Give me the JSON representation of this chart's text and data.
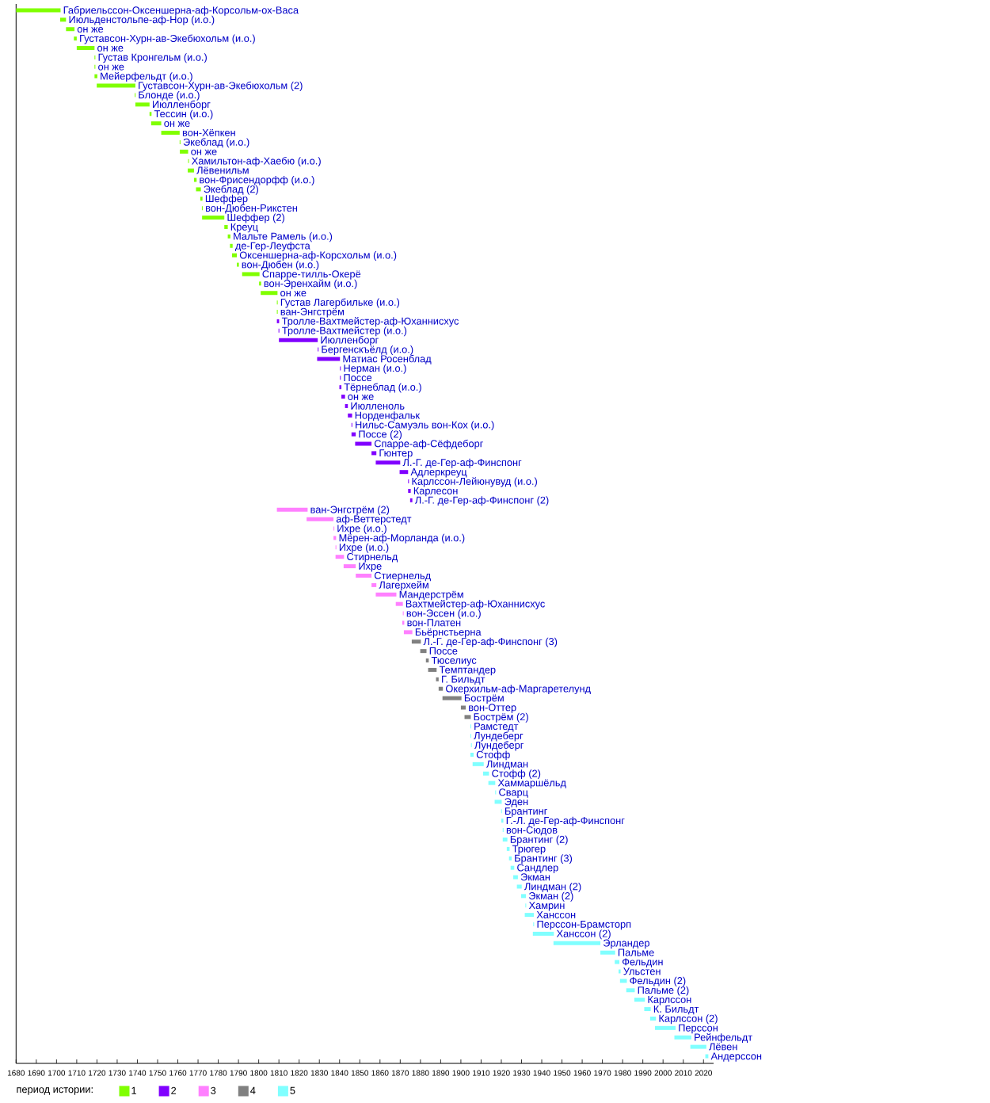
{
  "chart_data": {
    "type": "bar",
    "orientation": "horizontal",
    "categories": [
      "Габриельссон-Оксеншерна-аф-Корсольм-ох-Васа",
      "Июльденстольпе-аф-Нор (и.о.)",
      "он же",
      "Густавсон-Хурн-ав-Экебюхольм (и.о.)",
      "он же",
      "Густав Кронгельм (и.о.)",
      "он же",
      "Мейерфельдт (и.о.)",
      "Густавсон-Хурн-ав-Экебюхольм (2)",
      "Блонде (и.о.)",
      "Июлленборг",
      "Тессин (и.о.)",
      "он же",
      "вон-Хёпкен",
      "Экеблад (и.о.)",
      "он же",
      "Хамильтон-аф-Хаебю (и.о.)",
      "Лёвенильм",
      "вон-Фрисендорфф (и.о.)",
      "Экеблад (2)",
      "Шеффер",
      "вон-Дюбен-Рикстен",
      "Шеффер (2)",
      "Креуц",
      "Мальте Рамель (и.о.)",
      "де-Гер-Леуфста",
      "Оксеншерна-аф-Корсхольм (и.о.)",
      "вон-Дюбен (и.о.)",
      "Спарре-тилль-Окерё",
      "вон-Эренхайм (и.о.)",
      "он же",
      "Густав Лагербильке (и.о.)",
      "ван-Энгстрём",
      "Тролле-Вахтмейстер-аф-Юханнисхус",
      "Тролле-Вахтмейстер (и.о.)",
      "Июлленборг",
      "Бергенскъёлд (и.о.)",
      "Матиас Росенблад",
      "Нерман (и.о.)",
      "Поссе",
      "Тёрнеблад (и.о.)",
      "он же",
      "Июлленоль",
      "Норденфальк",
      "Нильс-Самуэль вон-Кох (и.о.)",
      "Поссе (2)",
      "Спарре-аф-Сёфдеборг",
      "Гюнтер",
      "Л.-Г. де-Гер-аф-Финспонг",
      "Адлеркреуц",
      "Карлссон-Лейюнувуд (и.о.)",
      "Карлесон",
      "Л.-Г. де-Гер-аф-Финспонг (2)",
      "ван-Энгстрём (2)",
      "аф-Веттерстедт",
      "Ихре (и.о.)",
      "Мёрен-аф-Морланда (и.о.)",
      "Ихре (и.о.)",
      "Стирнельд",
      "Ихре",
      "Стиернельд",
      "Лагерхейм",
      "Мандерстрём",
      "Вахтмейстер-аф-Юханнисхус",
      "вон-Эссен (и.о.)",
      "вон-Платен",
      "Бьёрнстьерна",
      "Л.-Г. де-Гер-аф-Финспонг (3)",
      "Поссе",
      "Тюселиус",
      "Темптандер",
      "Г. Бильдт",
      "Окерхильм-аф-Маргаретелунд",
      "Бострём",
      "вон-Оттер",
      "Бострём (2)",
      "Рамстедт",
      "Лундеберг",
      "Лундеберг",
      "Стофф",
      "Линдман",
      "Стофф (2)",
      "Хаммаршёльд",
      "Сварц",
      "Эден",
      "Брантинг",
      "Г.-Л. де-Гер-аф-Финспонг",
      "вон-Сюдов",
      "Брантинг (2)",
      "Трюгер",
      "Брантинг (3)",
      "Сандлер",
      "Экман",
      "Линдман (2)",
      "Экман (2)",
      "Хамрин",
      "Ханссон",
      "Перссон-Брамсторп",
      "Ханссон (2)",
      "Эрландер",
      "Пальме",
      "Фельдин",
      "Ульстен",
      "Фельдин (2)",
      "Пальме (2)",
      "Карлссон",
      "К. Бильдт",
      "Карлссон (2)",
      "Перссон",
      "Рейнфельдт",
      "Лёвен",
      "Андерссон"
    ],
    "series": [
      {
        "name": "1",
        "color": "#80ff00",
        "base": [
          1680,
          1701.8,
          1704.7,
          1708.6,
          1710,
          1718.8,
          1718.8,
          1718.8,
          1719.9,
          1738.7,
          1739,
          1746,
          1746.8,
          1751.8,
          1760.9,
          1761,
          1765.1,
          1764.9,
          1768,
          1769,
          1771.1,
          1771.9,
          1772,
          1783,
          1784.7,
          1785.8,
          1786.8,
          1789.2,
          1791.8,
          1800.2,
          1801,
          1809,
          1809,
          null,
          null,
          null,
          null,
          null,
          null,
          null,
          null,
          null,
          null,
          null,
          null,
          null,
          null,
          null,
          null,
          null,
          null,
          null,
          null,
          null,
          null,
          null,
          null,
          null,
          null,
          null,
          null,
          null,
          null,
          null,
          null,
          null,
          null,
          null,
          null,
          null,
          null,
          null,
          null,
          null,
          null,
          null,
          null,
          null,
          null,
          null,
          null,
          null,
          null,
          null,
          null,
          null,
          null,
          null,
          null,
          null,
          null,
          null,
          null,
          null,
          null,
          null,
          null,
          null,
          null,
          null,
          null,
          null,
          null,
          null,
          null,
          null,
          null,
          null,
          null,
          null,
          null,
          null
        ],
        "values": [
          22,
          2.9,
          4.2,
          1.4,
          8.8,
          0.4,
          0.4,
          1.4,
          19.1,
          0.4,
          7,
          1,
          5,
          9.1,
          0.4,
          4.1,
          0.4,
          3.1,
          1.3,
          2.4,
          1.1,
          0.4,
          11,
          1.7,
          1.3,
          1.3,
          2.4,
          1,
          8.6,
          1,
          8.3,
          0.4,
          0.4,
          null,
          null,
          null,
          null,
          null,
          null,
          null,
          null,
          null,
          null,
          null,
          null,
          null,
          null,
          null,
          null,
          null,
          null,
          null,
          null,
          null,
          null,
          null,
          null,
          null,
          null,
          null,
          null,
          null,
          null,
          null,
          null,
          null,
          null,
          null,
          null,
          null,
          null,
          null,
          null,
          null,
          null,
          null,
          null,
          null,
          null,
          null,
          null,
          null,
          null,
          null,
          null,
          null,
          null,
          null,
          null,
          null,
          null,
          null,
          null,
          null,
          null,
          null,
          null,
          null,
          null,
          null,
          null,
          null,
          null,
          null,
          null,
          null,
          null,
          null,
          null,
          null,
          null,
          null
        ]
      },
      {
        "name": "2",
        "color": "#8000ff",
        "base": [
          null,
          null,
          null,
          null,
          null,
          null,
          null,
          null,
          null,
          null,
          null,
          null,
          null,
          null,
          null,
          null,
          null,
          null,
          null,
          null,
          null,
          null,
          null,
          null,
          null,
          null,
          null,
          null,
          null,
          null,
          null,
          null,
          null,
          1809,
          1809.8,
          1810,
          1829.2,
          1828.9,
          1840.2,
          1840.2,
          1839.9,
          1840.9,
          1842.7,
          1844.1,
          1845.9,
          1845.9,
          1847.7,
          1855.8,
          1857.9,
          1869.7,
          1873.9,
          1873.9,
          1874.9,
          null,
          null,
          null,
          null,
          null,
          null,
          null,
          null,
          null,
          null,
          null,
          null,
          null,
          null,
          null,
          null,
          null,
          null,
          null,
          null,
          null,
          null,
          null,
          null,
          null,
          null,
          null,
          null,
          null,
          null,
          null,
          null,
          null,
          null,
          null,
          null,
          null,
          null,
          null,
          null,
          null,
          null,
          null,
          null,
          null,
          null,
          null,
          null,
          null,
          null,
          null,
          null,
          null,
          null,
          null,
          null,
          null,
          null,
          null
        ],
        "values": [
          null,
          null,
          null,
          null,
          null,
          null,
          null,
          null,
          null,
          null,
          null,
          null,
          null,
          null,
          null,
          null,
          null,
          null,
          null,
          null,
          null,
          null,
          null,
          null,
          null,
          null,
          null,
          null,
          null,
          null,
          null,
          null,
          null,
          1.1,
          0.4,
          19.2,
          0.4,
          11.3,
          0.4,
          0.4,
          1,
          1.8,
          1.4,
          2.1,
          0.4,
          2.1,
          8.1,
          2.4,
          12.1,
          4.2,
          0.4,
          1.3,
          1.1,
          null,
          null,
          null,
          null,
          null,
          null,
          null,
          null,
          null,
          null,
          null,
          null,
          null,
          null,
          null,
          null,
          null,
          null,
          null,
          null,
          null,
          null,
          null,
          null,
          null,
          null,
          null,
          null,
          null,
          null,
          null,
          null,
          null,
          null,
          null,
          null,
          null,
          null,
          null,
          null,
          null,
          null,
          null,
          null,
          null,
          null,
          null,
          null,
          null,
          null,
          null,
          null,
          null,
          null,
          null,
          null,
          null,
          null,
          null
        ]
      },
      {
        "name": "3",
        "color": "#ff80ff",
        "base": [
          null,
          null,
          null,
          null,
          null,
          null,
          null,
          null,
          null,
          null,
          null,
          null,
          null,
          null,
          null,
          null,
          null,
          null,
          null,
          null,
          null,
          null,
          null,
          null,
          null,
          null,
          null,
          null,
          null,
          null,
          null,
          null,
          null,
          null,
          null,
          null,
          null,
          null,
          null,
          null,
          null,
          null,
          null,
          null,
          null,
          null,
          null,
          null,
          null,
          null,
          null,
          null,
          null,
          1809,
          1823.7,
          1837,
          1837,
          1838,
          1838,
          1842,
          1848,
          1855.8,
          1857.9,
          1867.8,
          1871.3,
          1871,
          1871.8,
          null,
          null,
          null,
          null,
          null,
          null,
          null,
          null,
          null,
          null,
          null,
          null,
          null,
          null,
          null,
          null,
          null,
          null,
          null,
          null,
          null,
          null,
          null,
          null,
          null,
          null,
          null,
          null,
          null,
          null,
          null,
          null,
          null,
          null,
          null,
          null,
          null,
          null,
          null,
          null,
          null,
          null,
          null,
          null,
          null
        ],
        "values": [
          null,
          null,
          null,
          null,
          null,
          null,
          null,
          null,
          null,
          null,
          null,
          null,
          null,
          null,
          null,
          null,
          null,
          null,
          null,
          null,
          null,
          null,
          null,
          null,
          null,
          null,
          null,
          null,
          null,
          null,
          null,
          null,
          null,
          null,
          null,
          null,
          null,
          null,
          null,
          null,
          null,
          null,
          null,
          null,
          null,
          null,
          null,
          null,
          null,
          null,
          null,
          null,
          null,
          15.2,
          13.3,
          0.4,
          1.3,
          0.4,
          4.2,
          6,
          7.8,
          2.4,
          10.2,
          3.5,
          0.4,
          1,
          4.2,
          null,
          null,
          null,
          null,
          null,
          null,
          null,
          null,
          null,
          null,
          null,
          null,
          null,
          null,
          null,
          null,
          null,
          null,
          null,
          null,
          null,
          null,
          null,
          null,
          null,
          null,
          null,
          null,
          null,
          null,
          null,
          null,
          null,
          null,
          null,
          null,
          null,
          null,
          null,
          null,
          null,
          null,
          null,
          null,
          null
        ]
      },
      {
        "name": "4",
        "color": "#808080",
        "base": [
          null,
          null,
          null,
          null,
          null,
          null,
          null,
          null,
          null,
          null,
          null,
          null,
          null,
          null,
          null,
          null,
          null,
          null,
          null,
          null,
          null,
          null,
          null,
          null,
          null,
          null,
          null,
          null,
          null,
          null,
          null,
          null,
          null,
          null,
          null,
          null,
          null,
          null,
          null,
          null,
          null,
          null,
          null,
          null,
          null,
          null,
          null,
          null,
          null,
          null,
          null,
          null,
          null,
          null,
          null,
          null,
          null,
          null,
          null,
          null,
          null,
          null,
          null,
          null,
          null,
          null,
          null,
          1875.7,
          1879.9,
          1882.7,
          1883.8,
          1887.7,
          1889,
          1890.9,
          1900,
          1901.8,
          null,
          null,
          null,
          null,
          null,
          null,
          null,
          null,
          null,
          null,
          null,
          null,
          null,
          null,
          null,
          null,
          null,
          null,
          null,
          null,
          null,
          null,
          null,
          null,
          null,
          null,
          null,
          null,
          null,
          null,
          null,
          null,
          null,
          null,
          null,
          null
        ],
        "values": [
          null,
          null,
          null,
          null,
          null,
          null,
          null,
          null,
          null,
          null,
          null,
          null,
          null,
          null,
          null,
          null,
          null,
          null,
          null,
          null,
          null,
          null,
          null,
          null,
          null,
          null,
          null,
          null,
          null,
          null,
          null,
          null,
          null,
          null,
          null,
          null,
          null,
          null,
          null,
          null,
          null,
          null,
          null,
          null,
          null,
          null,
          null,
          null,
          null,
          null,
          null,
          null,
          null,
          null,
          null,
          null,
          null,
          null,
          null,
          null,
          null,
          null,
          null,
          null,
          null,
          null,
          null,
          4.5,
          3.1,
          1.4,
          4.2,
          1.3,
          2.1,
          9.4,
          2.4,
          3.1,
          null,
          null,
          null,
          null,
          null,
          null,
          null,
          null,
          null,
          null,
          null,
          null,
          null,
          null,
          null,
          null,
          null,
          null,
          null,
          null,
          null,
          null,
          null,
          null,
          null,
          null,
          null,
          null,
          null,
          null,
          null,
          null,
          null,
          null,
          null,
          null
        ]
      },
      {
        "name": "5",
        "color": "#80ffff",
        "base": [
          null,
          null,
          null,
          null,
          null,
          null,
          null,
          null,
          null,
          null,
          null,
          null,
          null,
          null,
          null,
          null,
          null,
          null,
          null,
          null,
          null,
          null,
          null,
          null,
          null,
          null,
          null,
          null,
          null,
          null,
          null,
          null,
          null,
          null,
          null,
          null,
          null,
          null,
          null,
          null,
          null,
          null,
          null,
          null,
          null,
          null,
          null,
          null,
          null,
          null,
          null,
          null,
          null,
          null,
          null,
          null,
          null,
          null,
          null,
          null,
          null,
          null,
          null,
          null,
          null,
          null,
          null,
          null,
          null,
          null,
          null,
          null,
          null,
          null,
          null,
          null,
          1904.7,
          1904.7,
          1905,
          1904.7,
          1905.8,
          1911,
          1913.6,
          1917,
          1916.7,
          1919.9,
          1920,
          1920.7,
          1920.7,
          1922.7,
          1923.8,
          1924.6,
          1925.9,
          1927.7,
          1929.8,
          1931.9,
          1931.6,
          1935.8,
          1935.6,
          1945.8,
          1969,
          1976.1,
          1978,
          1978.7,
          1981.8,
          1985.8,
          1990.7,
          1993.6,
          1996,
          2005.6,
          2013.5,
          2020.9
        ],
        "values": [
          null,
          null,
          null,
          null,
          null,
          null,
          null,
          null,
          null,
          null,
          null,
          null,
          null,
          null,
          null,
          null,
          null,
          null,
          null,
          null,
          null,
          null,
          null,
          null,
          null,
          null,
          null,
          null,
          null,
          null,
          null,
          null,
          null,
          null,
          null,
          null,
          null,
          null,
          null,
          null,
          null,
          null,
          null,
          null,
          null,
          null,
          null,
          null,
          null,
          null,
          null,
          null,
          null,
          null,
          null,
          null,
          null,
          null,
          null,
          null,
          null,
          null,
          null,
          null,
          null,
          null,
          null,
          null,
          null,
          null,
          null,
          null,
          null,
          null,
          null,
          null,
          0.4,
          0.4,
          0.4,
          1.6,
          5.5,
          2.9,
          3.4,
          0.4,
          3.5,
          0.4,
          1,
          0.4,
          2.3,
          1.4,
          1.3,
          1.8,
          2.3,
          2.4,
          2.4,
          0.4,
          4.5,
          0.4,
          10.4,
          23.2,
          7.3,
          2.3,
          1,
          3.4,
          4.2,
          5.2,
          3.2,
          2.9,
          10.2,
          8.4,
          7.9,
          1.5
        ]
      }
    ],
    "xlim": [
      1680,
      2025
    ],
    "xticks": [
      1680,
      1690,
      1700,
      1710,
      1720,
      1730,
      1740,
      1750,
      1760,
      1770,
      1780,
      1790,
      1800,
      1810,
      1820,
      1830,
      1840,
      1850,
      1860,
      1870,
      1880,
      1890,
      1900,
      1910,
      1920,
      1930,
      1940,
      1950,
      1960,
      1970,
      1980,
      1990,
      2000,
      2010,
      2020
    ],
    "legend": "bottom left",
    "legend_title": "период истории:"
  }
}
